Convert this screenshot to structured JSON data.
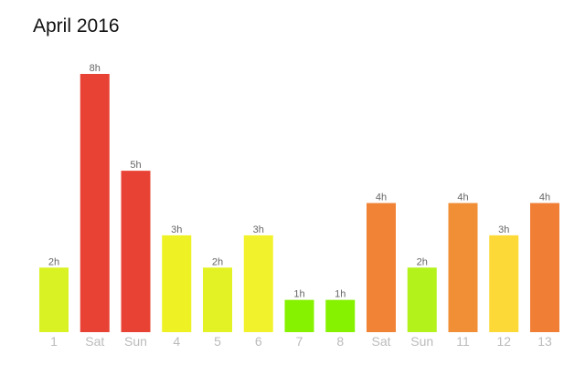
{
  "chart_data": {
    "type": "bar",
    "title": "April 2016",
    "xlabel": "",
    "ylabel": "",
    "ylim": [
      0,
      8
    ],
    "grid": false,
    "legend": "none",
    "categories": [
      "1",
      "Sat",
      "Sun",
      "4",
      "5",
      "6",
      "7",
      "8",
      "Sat",
      "Sun",
      "11",
      "12",
      "13"
    ],
    "values": [
      2,
      8,
      5,
      3,
      2,
      3,
      1,
      1,
      4,
      2,
      4,
      3,
      4
    ],
    "data_labels": [
      "2h",
      "8h",
      "5h",
      "3h",
      "2h",
      "3h",
      "1h",
      "1h",
      "4h",
      "2h",
      "4h",
      "3h",
      "4h"
    ],
    "colors": [
      "#d9f224",
      "#e84234",
      "#e84234",
      "#eef224",
      "#e3f224",
      "#f2f22c",
      "#86f200",
      "#86f200",
      "#f08335",
      "#b4f21c",
      "#f08f35",
      "#fcd936",
      "#f07e35"
    ]
  }
}
